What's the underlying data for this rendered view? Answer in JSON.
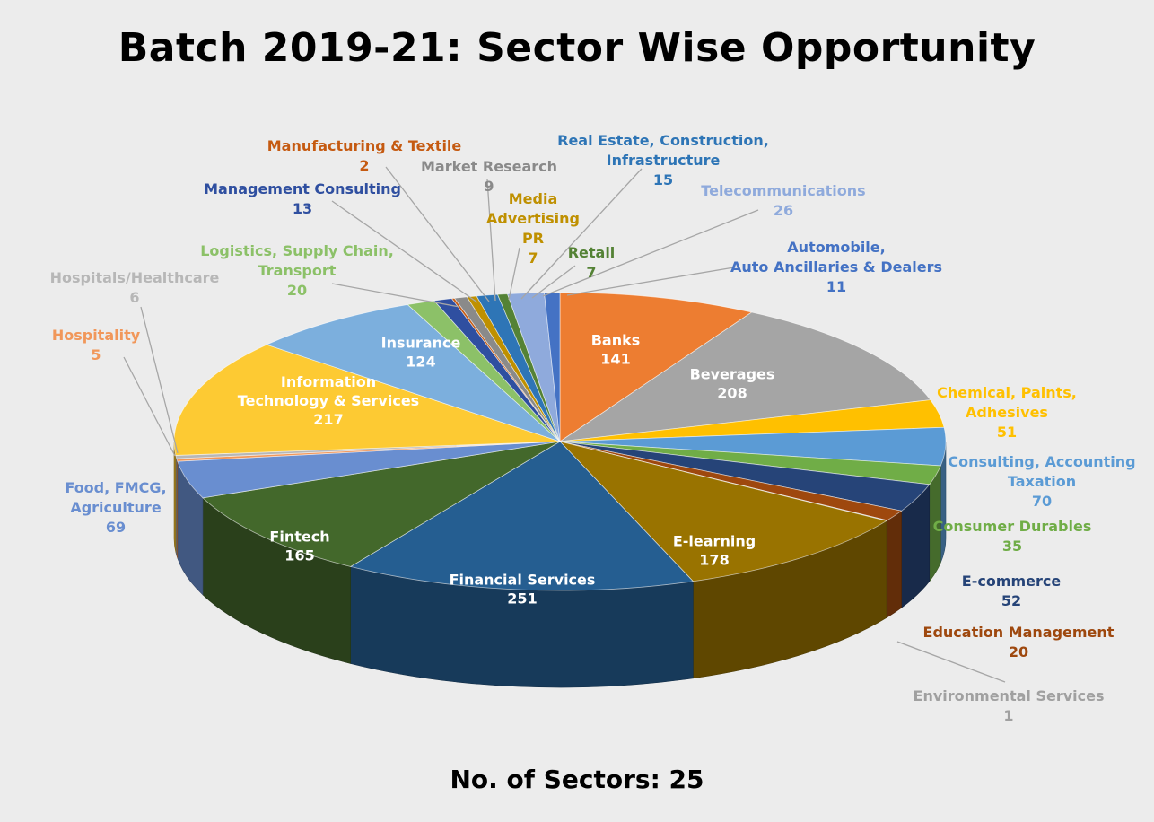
{
  "title": "Batch 2019-21: Sector Wise Opportunity",
  "footer": "No. of Sectors: 25",
  "chart_data": {
    "type": "pie",
    "title": "Batch 2019-21: Sector Wise Opportunity",
    "slices": [
      {
        "label": [
          "Banks"
        ],
        "value": 141,
        "color": "#ed7d31",
        "label_inside": true
      },
      {
        "label": [
          "Beverages"
        ],
        "value": 208,
        "color": "#a5a5a5",
        "label_inside": true
      },
      {
        "label": [
          "Chemical, Paints,",
          "Adhesives"
        ],
        "value": 51,
        "color": "#ffc000",
        "label_inside": false
      },
      {
        "label": [
          "Consulting, Accounting",
          "Taxation"
        ],
        "value": 70,
        "color": "#5b9bd5",
        "label_inside": false
      },
      {
        "label": [
          "Consumer Durables"
        ],
        "value": 35,
        "color": "#70ad47",
        "label_inside": false
      },
      {
        "label": [
          "E-commerce"
        ],
        "value": 52,
        "color": "#264478",
        "label_inside": false
      },
      {
        "label": [
          "Education Management"
        ],
        "value": 20,
        "color": "#9e480e",
        "label_inside": false
      },
      {
        "label": [
          "Environmental Services"
        ],
        "value": 1,
        "color": "#a0a0a0",
        "label_inside": false
      },
      {
        "label": [
          "E-learning"
        ],
        "value": 178,
        "color": "#997300",
        "label_inside": true
      },
      {
        "label": [
          "Financial Services"
        ],
        "value": 251,
        "color": "#255e91",
        "label_inside": true
      },
      {
        "label": [
          "Fintech"
        ],
        "value": 165,
        "color": "#43682b",
        "label_inside": true
      },
      {
        "label": [
          "Food, FMCG,",
          "Agriculture"
        ],
        "value": 69,
        "color": "#698ed0",
        "label_inside": false
      },
      {
        "label": [
          "Hospitality"
        ],
        "value": 5,
        "color": "#f1975a",
        "label_inside": false
      },
      {
        "label": [
          "Hospitals/Healthcare"
        ],
        "value": 6,
        "color": "#b7b7b7",
        "label_inside": false
      },
      {
        "label": [
          "Information",
          "Technology & Services"
        ],
        "value": 217,
        "color": "#fdca33",
        "label_inside": true
      },
      {
        "label": [
          "Insurance"
        ],
        "value": 124,
        "color": "#7cafdd",
        "label_inside": true
      },
      {
        "label": [
          "Logistics, Supply Chain,",
          "Transport"
        ],
        "value": 20,
        "color": "#8cc168",
        "label_inside": false
      },
      {
        "label": [
          "Management Consulting"
        ],
        "value": 13,
        "color": "#2f4fa0",
        "label_inside": false
      },
      {
        "label": [
          "Manufacturing & Textile"
        ],
        "value": 2,
        "color": "#c55a11",
        "label_inside": false
      },
      {
        "label": [
          "Market Research"
        ],
        "value": 9,
        "color": "#8a8a8a",
        "label_inside": false
      },
      {
        "label": [
          "Media",
          "Advertising",
          "PR"
        ],
        "value": 7,
        "color": "#bf9000",
        "label_inside": false
      },
      {
        "label": [
          "Real Estate, Construction,",
          "Infrastructure"
        ],
        "value": 15,
        "color": "#2e75b6",
        "label_inside": false
      },
      {
        "label": [
          "Retail"
        ],
        "value": 7,
        "color": "#548235",
        "label_inside": false
      },
      {
        "label": [
          "Telecommunications"
        ],
        "value": 26,
        "color": "#8faadc",
        "label_inside": false
      },
      {
        "label": [
          "Automobile,",
          "Auto Ancillaries & Dealers"
        ],
        "value": 11,
        "color": "#4472c4",
        "label_inside": false
      }
    ]
  }
}
